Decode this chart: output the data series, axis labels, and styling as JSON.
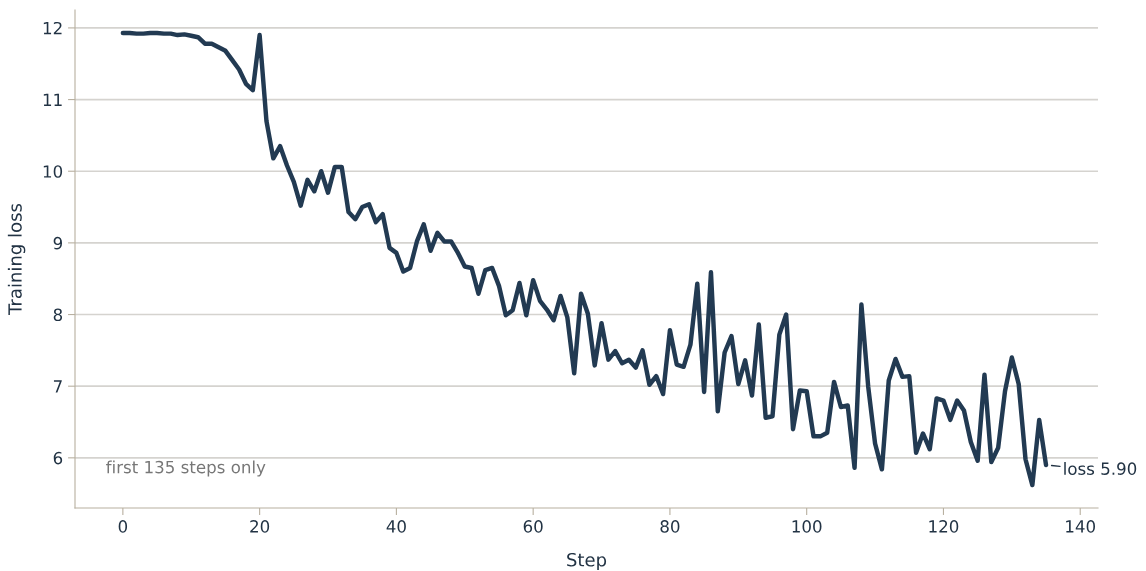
{
  "chart_data": {
    "type": "line",
    "xlabel": "Step",
    "ylabel": "Training loss",
    "x": [
      0,
      1,
      2,
      3,
      4,
      5,
      6,
      7,
      8,
      9,
      10,
      11,
      12,
      13,
      14,
      15,
      16,
      17,
      18,
      19,
      20,
      21,
      22,
      23,
      24,
      25,
      26,
      27,
      28,
      29,
      30,
      31,
      32,
      33,
      34,
      35,
      36,
      37,
      38,
      39,
      40,
      41,
      42,
      43,
      44,
      45,
      46,
      47,
      48,
      49,
      50,
      51,
      52,
      53,
      54,
      55,
      56,
      57,
      58,
      59,
      60,
      61,
      62,
      63,
      64,
      65,
      66,
      67,
      68,
      69,
      70,
      71,
      72,
      73,
      74,
      75,
      76,
      77,
      78,
      79,
      80,
      81,
      82,
      83,
      84,
      85,
      86,
      87,
      88,
      89,
      90,
      91,
      92,
      93,
      94,
      95,
      96,
      97,
      98,
      99,
      100,
      101,
      102,
      103,
      104,
      105,
      106,
      107,
      108,
      109,
      110,
      111,
      112,
      113,
      114,
      115,
      116,
      117,
      118,
      119,
      120,
      121,
      122,
      123,
      124,
      125,
      126,
      127,
      128,
      129,
      130,
      131,
      132,
      133,
      134,
      135
    ],
    "series": [
      {
        "color": "#223a52",
        "values": [
          11.93,
          11.93,
          11.92,
          11.92,
          11.93,
          11.93,
          11.92,
          11.92,
          11.9,
          11.91,
          11.89,
          11.87,
          11.78,
          11.78,
          11.73,
          11.68,
          11.55,
          11.42,
          11.22,
          11.13,
          11.9,
          10.7,
          10.18,
          10.35,
          10.08,
          9.85,
          9.52,
          9.88,
          9.72,
          10.0,
          9.7,
          10.06,
          10.06,
          9.43,
          9.33,
          9.5,
          9.54,
          9.29,
          9.4,
          8.93,
          8.86,
          8.6,
          8.65,
          9.02,
          9.26,
          8.89,
          9.14,
          9.02,
          9.02,
          8.86,
          8.67,
          8.65,
          8.29,
          8.62,
          8.65,
          8.4,
          7.99,
          8.06,
          8.44,
          7.99,
          8.48,
          8.19,
          8.07,
          7.92,
          8.26,
          7.96,
          7.18,
          8.29,
          8.01,
          7.29,
          7.88,
          7.37,
          7.49,
          7.32,
          7.37,
          7.26,
          7.5,
          7.02,
          7.14,
          6.89,
          7.78,
          7.3,
          7.27,
          7.58,
          8.43,
          6.92,
          8.59,
          6.65,
          7.47,
          7.7,
          7.03,
          7.36,
          6.87,
          7.86,
          6.56,
          6.58,
          7.72,
          8.0,
          6.4,
          6.94,
          6.93,
          6.3,
          6.3,
          6.35,
          7.06,
          6.71,
          6.73,
          5.86,
          8.14,
          6.99,
          6.2,
          5.84,
          7.08,
          7.38,
          7.13,
          7.14,
          6.07,
          6.34,
          6.12,
          6.83,
          6.8,
          6.53,
          6.8,
          6.66,
          6.22,
          5.96,
          7.16,
          5.94,
          6.14,
          6.93,
          7.4,
          7.03,
          5.98,
          5.62,
          6.53,
          5.9
        ]
      }
    ],
    "xlim": [
      -7,
      142.6
    ],
    "ylim": [
      5.3,
      12.25
    ],
    "xticks": [
      0,
      20,
      40,
      60,
      80,
      100,
      120,
      140
    ],
    "yticks": [
      6,
      7,
      8,
      9,
      10,
      11,
      12
    ],
    "grid": "y",
    "legend": false,
    "marker": "none",
    "line_style": "solid",
    "annotations": [
      {
        "text": "loss 5.90",
        "x": 135,
        "y": 5.9
      },
      "first 135 steps only"
    ]
  }
}
